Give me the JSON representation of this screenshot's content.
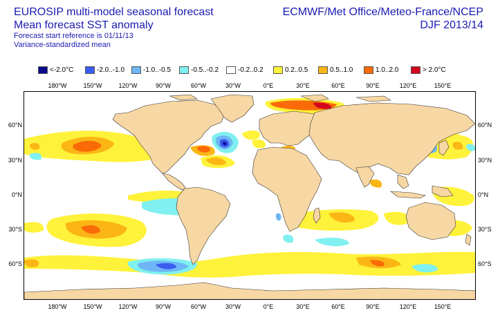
{
  "header": {
    "title_line1": "EUROSIP multi-model seasonal forecast",
    "title_line2": "Mean forecast SST anomaly",
    "subtitle_line1": "Forecast start reference is 01/11/13",
    "subtitle_line2": "Variance-standardized mean",
    "source": "ECMWF/Met Office/Meteo-France/NCEP",
    "period": "DJF 2013/14"
  },
  "legend": [
    {
      "label": "<-2.0°C",
      "color": "#0a0a8c"
    },
    {
      "label": "-2.0..-1.0",
      "color": "#3a5cf0"
    },
    {
      "label": "-1.0..-0.5",
      "color": "#6eb6f5"
    },
    {
      "label": "-0.5..-0.2",
      "color": "#80f0f0"
    },
    {
      "label": "-0.2..0.2",
      "color": "#ffffff"
    },
    {
      "label": "0.2..0.5",
      "color": "#fff23a"
    },
    {
      "label": "0.5..1.0",
      "color": "#fbb616"
    },
    {
      "label": "1.0..2.0",
      "color": "#fa6a06"
    },
    {
      "label": "> 2.0°C",
      "color": "#d2071e"
    }
  ],
  "axes": {
    "lon_labels": [
      "180°W",
      "150°W",
      "120°W",
      "90°W",
      "60°W",
      "30°W",
      "0°E",
      "30°E",
      "60°E",
      "90°E",
      "120°E",
      "150°E"
    ],
    "lat_labels": [
      "60°N",
      "30°N",
      "0°N",
      "30°S",
      "60°S"
    ]
  },
  "colors": {
    "land": "#f7d7a3",
    "coast": "#333333"
  }
}
